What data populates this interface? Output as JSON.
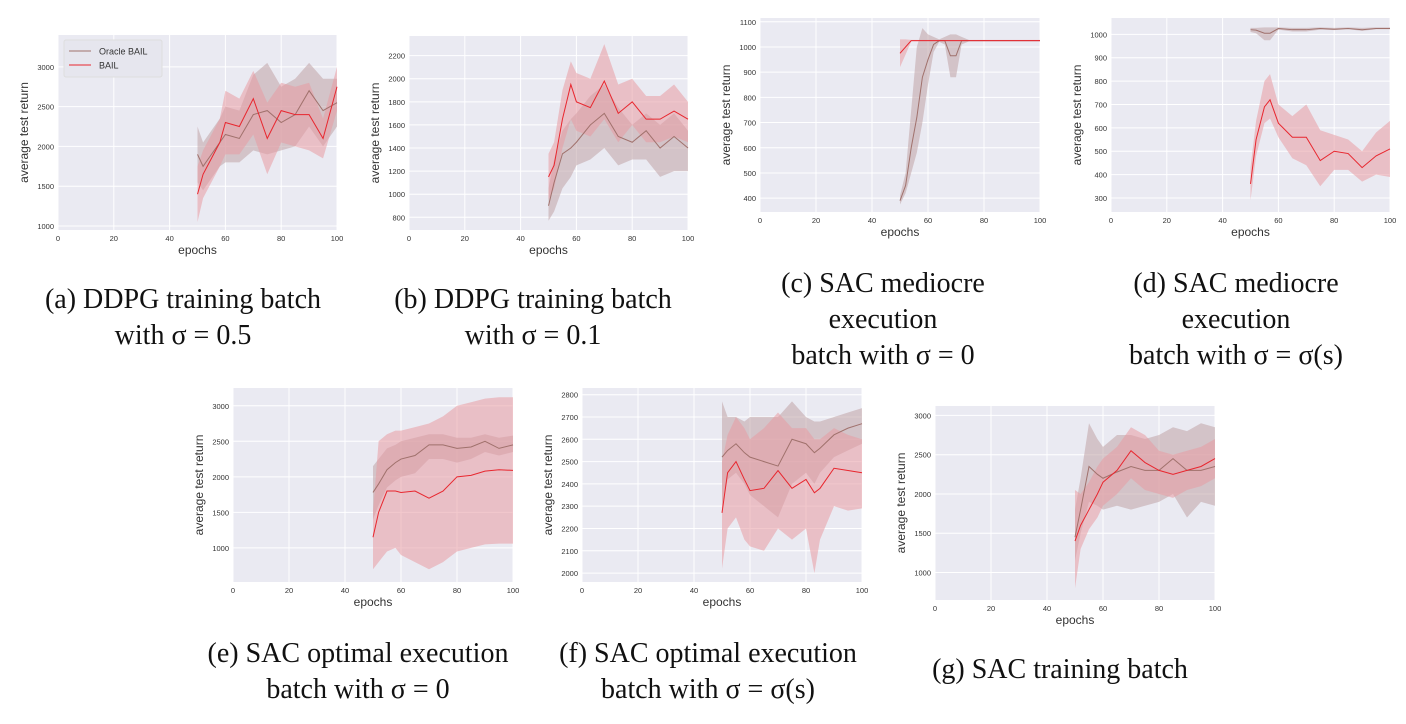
{
  "figure": {
    "captions": [
      {
        "id": "a",
        "lines": [
          "(a) DDPG training batch",
          "with σ = 0.5"
        ]
      },
      {
        "id": "b",
        "lines": [
          "(b) DDPG training batch",
          "with σ = 0.1"
        ]
      },
      {
        "id": "c",
        "lines": [
          "(c) SAC mediocre",
          "execution",
          "batch with σ = 0"
        ]
      },
      {
        "id": "d",
        "lines": [
          "(d) SAC mediocre",
          "execution",
          "batch with σ = σ(s)"
        ]
      },
      {
        "id": "e",
        "lines": [
          "(e) SAC optimal execution",
          "batch with σ = 0"
        ]
      },
      {
        "id": "f",
        "lines": [
          "(f) SAC optimal execution",
          "batch with σ = σ(s)"
        ]
      },
      {
        "id": "g",
        "lines": [
          "(g) SAC training batch"
        ]
      }
    ]
  },
  "colors": {
    "oracle": "#a0716c",
    "oracle_band": "#bfa3a5",
    "bail": "#e8262e",
    "bail_band": "#e89aa3",
    "axes_bg": "#eaeaf2",
    "grid": "#ffffff"
  },
  "chart_data": [
    {
      "type": "line",
      "id": "a",
      "xlabel": "epochs",
      "ylabel": "average test return",
      "xlim": [
        0,
        100
      ],
      "ylim": [
        950,
        3400
      ],
      "xticks": [
        0,
        20,
        40,
        60,
        80,
        100
      ],
      "yticks": [
        1000,
        1500,
        2000,
        2500,
        3000
      ],
      "legend": "top-left",
      "grid": true,
      "x": [
        50,
        52,
        55,
        58,
        60,
        65,
        70,
        75,
        80,
        85,
        90,
        95,
        100
      ],
      "series": [
        {
          "name": "Oracle BAIL",
          "key": "oracle",
          "values": [
            1900,
            1750,
            1900,
            2050,
            2150,
            2100,
            2400,
            2450,
            2300,
            2400,
            2700,
            2450,
            2550
          ],
          "lo": [
            1550,
            1450,
            1600,
            1750,
            1800,
            1800,
            1950,
            1900,
            1950,
            2000,
            2250,
            2000,
            2250
          ],
          "hi": [
            2250,
            2050,
            2200,
            2350,
            2500,
            2450,
            2900,
            3050,
            2750,
            2850,
            3050,
            2850,
            2850
          ]
        },
        {
          "name": "BAIL",
          "key": "bail",
          "values": [
            1400,
            1650,
            1850,
            2050,
            2300,
            2250,
            2600,
            2100,
            2450,
            2400,
            2400,
            2100,
            2750
          ],
          "lo": [
            1050,
            1350,
            1550,
            1750,
            1900,
            1900,
            2150,
            1650,
            2050,
            2000,
            1950,
            1850,
            2450
          ],
          "hi": [
            1750,
            1950,
            2150,
            2350,
            2700,
            2600,
            2950,
            2550,
            2800,
            2750,
            2800,
            2350,
            3000
          ]
        }
      ]
    },
    {
      "type": "line",
      "id": "b",
      "xlabel": "epochs",
      "ylabel": "average test return",
      "xlim": [
        0,
        100
      ],
      "ylim": [
        690,
        2370
      ],
      "xticks": [
        0,
        20,
        40,
        60,
        80,
        100
      ],
      "yticks": [
        800,
        1000,
        1200,
        1400,
        1600,
        1800,
        2000,
        2200
      ],
      "grid": true,
      "x": [
        50,
        52,
        55,
        58,
        60,
        65,
        70,
        75,
        80,
        85,
        90,
        95,
        100
      ],
      "series": [
        {
          "name": "Oracle BAIL",
          "key": "oracle",
          "values": [
            900,
            1100,
            1350,
            1400,
            1450,
            1600,
            1700,
            1500,
            1450,
            1550,
            1400,
            1500,
            1400
          ],
          "lo": [
            770,
            850,
            1050,
            1150,
            1250,
            1300,
            1400,
            1250,
            1300,
            1300,
            1150,
            1200,
            1200
          ],
          "hi": [
            1050,
            1300,
            1550,
            1650,
            1700,
            1850,
            1950,
            1750,
            1600,
            1700,
            1600,
            1700,
            1550
          ]
        },
        {
          "name": "BAIL",
          "key": "bail",
          "values": [
            1150,
            1250,
            1650,
            1950,
            1800,
            1750,
            1980,
            1700,
            1800,
            1650,
            1650,
            1720,
            1650
          ],
          "lo": [
            950,
            1050,
            1400,
            1650,
            1550,
            1500,
            1650,
            1450,
            1600,
            1450,
            1450,
            1500,
            1450
          ],
          "hi": [
            1350,
            1450,
            1900,
            2150,
            2050,
            2000,
            2300,
            1950,
            2000,
            1850,
            1850,
            1950,
            1800
          ]
        }
      ]
    },
    {
      "type": "line",
      "id": "c",
      "xlabel": "epochs",
      "ylabel": "average test return",
      "xlim": [
        0,
        100
      ],
      "ylim": [
        345,
        1115
      ],
      "xticks": [
        0,
        20,
        40,
        60,
        80,
        100
      ],
      "yticks": [
        400,
        500,
        600,
        700,
        800,
        900,
        1000,
        1100
      ],
      "grid": true,
      "x": [
        50,
        52,
        54,
        56,
        58,
        60,
        62,
        64,
        66,
        68,
        70,
        72,
        75,
        80,
        85,
        90,
        95,
        100
      ],
      "series": [
        {
          "name": "Oracle BAIL",
          "key": "oracle",
          "values": [
            390,
            450,
            600,
            720,
            880,
            950,
            1010,
            1025,
            1025,
            965,
            965,
            1025,
            1025,
            1025,
            1025,
            1025,
            1025,
            1025
          ],
          "lo": [
            375,
            420,
            500,
            580,
            700,
            850,
            980,
            1020,
            1010,
            880,
            880,
            1010,
            1024,
            1024,
            1024,
            1024,
            1024,
            1024
          ],
          "hi": [
            410,
            500,
            750,
            1000,
            1075,
            1050,
            1040,
            1030,
            1040,
            1050,
            1050,
            1040,
            1026,
            1026,
            1026,
            1026,
            1026,
            1026
          ]
        },
        {
          "name": "BAIL",
          "key": "bail",
          "values": [
            975,
            1000,
            1025,
            1025,
            1025,
            1025,
            1025,
            1025,
            1025,
            1025,
            1025,
            1025,
            1025,
            1025,
            1025,
            1025,
            1025,
            1025
          ],
          "lo": [
            920,
            970,
            1022,
            1022,
            1022,
            1022,
            1022,
            1022,
            1022,
            1022,
            1022,
            1022,
            1022,
            1022,
            1022,
            1022,
            1022,
            1022
          ],
          "hi": [
            1030,
            1030,
            1028,
            1028,
            1028,
            1028,
            1028,
            1028,
            1028,
            1028,
            1028,
            1028,
            1028,
            1028,
            1028,
            1028,
            1028,
            1028
          ]
        }
      ]
    },
    {
      "type": "line",
      "id": "d",
      "xlabel": "epochs",
      "ylabel": "average test return",
      "xlim": [
        0,
        100
      ],
      "ylim": [
        240,
        1070
      ],
      "xticks": [
        0,
        20,
        40,
        60,
        80,
        100
      ],
      "yticks": [
        300,
        400,
        500,
        600,
        700,
        800,
        900,
        1000
      ],
      "grid": true,
      "x": [
        50,
        52,
        55,
        57,
        60,
        65,
        70,
        75,
        80,
        85,
        90,
        95,
        100
      ],
      "series": [
        {
          "name": "Oracle BAIL",
          "key": "oracle",
          "values": [
            1020,
            1018,
            1005,
            1005,
            1025,
            1020,
            1020,
            1025,
            1022,
            1025,
            1020,
            1025,
            1025
          ],
          "lo": [
            1010,
            1005,
            975,
            975,
            1020,
            1012,
            1012,
            1020,
            1018,
            1022,
            1015,
            1022,
            1022
          ],
          "hi": [
            1028,
            1028,
            1030,
            1030,
            1030,
            1028,
            1028,
            1030,
            1028,
            1030,
            1028,
            1030,
            1030
          ]
        },
        {
          "name": "BAIL",
          "key": "bail",
          "values": [
            360,
            550,
            690,
            720,
            620,
            560,
            560,
            460,
            500,
            490,
            430,
            480,
            510
          ],
          "lo": [
            290,
            480,
            620,
            640,
            560,
            470,
            440,
            350,
            420,
            420,
            370,
            400,
            390
          ],
          "hi": [
            430,
            630,
            800,
            830,
            700,
            650,
            700,
            590,
            570,
            550,
            500,
            580,
            630
          ]
        }
      ]
    },
    {
      "type": "line",
      "id": "e",
      "xlabel": "epochs",
      "ylabel": "average test return",
      "xlim": [
        0,
        100
      ],
      "ylim": [
        520,
        3250
      ],
      "xticks": [
        0,
        20,
        40,
        60,
        80,
        100
      ],
      "yticks": [
        1000,
        1500,
        2000,
        2500,
        3000
      ],
      "grid": true,
      "x": [
        50,
        52,
        55,
        58,
        60,
        65,
        70,
        75,
        80,
        85,
        90,
        95,
        100
      ],
      "series": [
        {
          "name": "Oracle BAIL",
          "key": "oracle",
          "values": [
            1780,
            1900,
            2100,
            2200,
            2250,
            2300,
            2450,
            2450,
            2400,
            2420,
            2500,
            2400,
            2450
          ],
          "lo": [
            1400,
            1600,
            1850,
            1950,
            2000,
            2050,
            2250,
            2250,
            2200,
            2250,
            2350,
            2300,
            2350
          ],
          "hi": [
            2150,
            2250,
            2400,
            2450,
            2500,
            2550,
            2600,
            2600,
            2550,
            2550,
            2600,
            2550,
            2580
          ]
        },
        {
          "name": "BAIL",
          "key": "bail",
          "values": [
            1150,
            1500,
            1800,
            1800,
            1780,
            1800,
            1700,
            1800,
            2000,
            2020,
            2080,
            2100,
            2090
          ],
          "lo": [
            700,
            800,
            950,
            1000,
            900,
            800,
            700,
            800,
            950,
            1000,
            1050,
            1060,
            1060
          ],
          "hi": [
            1500,
            2500,
            2600,
            2650,
            2650,
            2700,
            2750,
            2850,
            3000,
            3050,
            3100,
            3120,
            3120
          ]
        }
      ]
    },
    {
      "type": "line",
      "id": "f",
      "xlabel": "epochs",
      "ylabel": "average test return",
      "xlim": [
        0,
        100
      ],
      "ylim": [
        1960,
        2830
      ],
      "xticks": [
        0,
        20,
        40,
        60,
        80,
        100
      ],
      "yticks": [
        2000,
        2100,
        2200,
        2300,
        2400,
        2500,
        2600,
        2700,
        2800
      ],
      "grid": true,
      "x": [
        50,
        52,
        55,
        58,
        60,
        65,
        70,
        75,
        80,
        83,
        85,
        90,
        95,
        100
      ],
      "series": [
        {
          "name": "Oracle BAIL",
          "key": "oracle",
          "values": [
            2520,
            2550,
            2580,
            2540,
            2520,
            2500,
            2480,
            2600,
            2580,
            2540,
            2560,
            2620,
            2650,
            2670
          ],
          "lo": [
            2300,
            2420,
            2450,
            2400,
            2350,
            2300,
            2250,
            2400,
            2450,
            2400,
            2450,
            2520,
            2550,
            2580
          ],
          "hi": [
            2770,
            2700,
            2700,
            2680,
            2700,
            2700,
            2700,
            2770,
            2700,
            2680,
            2680,
            2700,
            2720,
            2740
          ]
        },
        {
          "name": "BAIL",
          "key": "bail",
          "values": [
            2270,
            2450,
            2500,
            2420,
            2370,
            2380,
            2460,
            2380,
            2420,
            2360,
            2380,
            2470,
            2460,
            2450
          ],
          "lo": [
            2020,
            2200,
            2250,
            2150,
            2120,
            2100,
            2200,
            2150,
            2200,
            2000,
            2150,
            2300,
            2280,
            2290
          ],
          "hi": [
            2500,
            2620,
            2700,
            2650,
            2600,
            2650,
            2720,
            2650,
            2650,
            2600,
            2600,
            2650,
            2620,
            2600
          ]
        }
      ]
    },
    {
      "type": "line",
      "id": "g",
      "xlabel": "epochs",
      "ylabel": "average test return",
      "xlim": [
        0,
        100
      ],
      "ylim": [
        650,
        3120
      ],
      "xticks": [
        0,
        20,
        40,
        60,
        80,
        100
      ],
      "yticks": [
        1000,
        1500,
        2000,
        2500,
        3000
      ],
      "grid": true,
      "x": [
        50,
        52,
        55,
        58,
        60,
        65,
        70,
        75,
        80,
        85,
        90,
        95,
        100
      ],
      "series": [
        {
          "name": "Oracle BAIL",
          "key": "oracle",
          "values": [
            1450,
            1800,
            2350,
            2250,
            2200,
            2280,
            2350,
            2300,
            2300,
            2450,
            2300,
            2300,
            2350
          ],
          "lo": [
            1150,
            1500,
            1900,
            1850,
            1800,
            1850,
            1800,
            1850,
            1900,
            2000,
            1700,
            1900,
            1850
          ],
          "hi": [
            1800,
            2200,
            2900,
            2700,
            2600,
            2750,
            2750,
            2700,
            2750,
            2850,
            2800,
            2900,
            2850
          ]
        },
        {
          "name": "BAIL",
          "key": "bail",
          "values": [
            1400,
            1600,
            1800,
            2000,
            2150,
            2300,
            2550,
            2400,
            2300,
            2250,
            2300,
            2350,
            2450
          ],
          "lo": [
            800,
            1300,
            1550,
            1700,
            1850,
            2000,
            2200,
            2050,
            2000,
            1950,
            2050,
            2100,
            2200
          ],
          "hi": [
            2050,
            2000,
            2150,
            2350,
            2450,
            2600,
            2850,
            2750,
            2550,
            2500,
            2550,
            2600,
            2700
          ]
        }
      ]
    }
  ]
}
